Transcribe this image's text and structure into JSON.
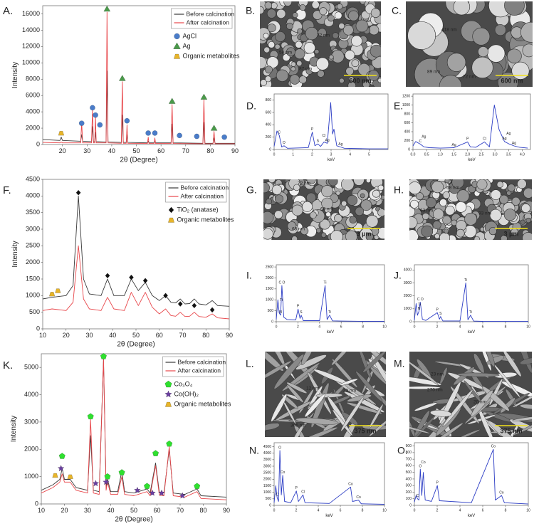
{
  "chart_data": [
    {
      "type": "line",
      "label": "A.",
      "xlabel": "2θ (Degree)",
      "ylabel": "Intensity",
      "legend": "upper right",
      "xlim": [
        12,
        90
      ],
      "xticks": [
        20,
        30,
        40,
        50,
        60,
        70,
        80,
        90
      ],
      "ylim": [
        0,
        17000
      ],
      "yticks": [
        0,
        2000,
        4000,
        6000,
        8000,
        10000,
        12000,
        14000,
        16000
      ],
      "x": [
        12,
        19,
        19.5,
        20,
        27.4,
        27.8,
        28.2,
        31.8,
        32.2,
        32.6,
        33.1,
        33.4,
        33.7,
        37.7,
        38.1,
        38.5,
        43.9,
        44.3,
        44.7,
        45.9,
        46.2,
        46.5,
        54.5,
        54.8,
        55.1,
        57.2,
        57.5,
        57.8,
        64.1,
        64.5,
        64.9,
        77,
        77.4,
        77.8,
        81.1,
        81.5,
        81.9,
        90
      ],
      "series": [
        {
          "name": "Before calcination",
          "color": "#3a3a3a",
          "values": [
            600,
            500,
            900,
            500,
            400,
            1200,
            400,
            350,
            2200,
            350,
            350,
            1500,
            350,
            300,
            9000,
            300,
            250,
            3600,
            250,
            250,
            1200,
            250,
            200,
            400,
            200,
            200,
            400,
            200,
            200,
            2500,
            200,
            150,
            2700,
            150,
            150,
            800,
            150,
            150
          ]
        },
        {
          "name": "After calcination",
          "color": "#e8474b",
          "values": [
            250,
            200,
            300,
            200,
            200,
            2700,
            200,
            200,
            4200,
            200,
            200,
            3400,
            200,
            200,
            16200,
            200,
            150,
            7700,
            150,
            150,
            2400,
            150,
            120,
            900,
            120,
            120,
            800,
            120,
            120,
            4900,
            120,
            100,
            5500,
            100,
            100,
            1600,
            100,
            100
          ]
        },
        {
          "name": "AgCl",
          "color": "#4a7cc9",
          "marker": "circle",
          "x": [
            27.8,
            32.2,
            33.4,
            35.2,
            46.2,
            54.8,
            57.5,
            67.5,
            74.5,
            85.7
          ],
          "values": [
            2600,
            4500,
            3600,
            2400,
            2900,
            1400,
            1400,
            1100,
            1000,
            900
          ]
        },
        {
          "name": "Ag",
          "color": "#4a9a4a",
          "marker": "triangle",
          "x": [
            38.1,
            44.3,
            64.5,
            77.4,
            81.5
          ],
          "values": [
            16600,
            8100,
            5300,
            5800,
            2000
          ]
        },
        {
          "name": "Organic metabolites",
          "color": "#e8b52a",
          "marker": "trapezoid",
          "x": [
            19.5
          ],
          "values": [
            1400
          ]
        }
      ]
    },
    {
      "type": "line",
      "label": "D.",
      "xlabel": "keV",
      "color": "#2b3cc4",
      "xlim": [
        0,
        6
      ],
      "xticks": [
        0,
        1,
        2,
        3,
        4,
        5
      ],
      "ylim": [
        0,
        900
      ],
      "yticks": [
        0,
        200,
        400,
        600,
        800
      ],
      "x": [
        0,
        0.15,
        0.27,
        0.4,
        0.52,
        0.7,
        1.8,
        2.01,
        2.15,
        2.3,
        2.45,
        2.62,
        2.8,
        2.98,
        3.08,
        3.15,
        3.3,
        3.5,
        3.7,
        5,
        6
      ],
      "values": [
        50,
        300,
        230,
        40,
        60,
        20,
        30,
        280,
        60,
        90,
        50,
        120,
        100,
        760,
        250,
        330,
        60,
        40,
        20,
        10,
        10
      ],
      "annotations": [
        {
          "text": "C",
          "x": 0.27
        },
        {
          "text": "O",
          "x": 0.52
        },
        {
          "text": "P",
          "x": 2.01
        },
        {
          "text": "S",
          "x": 2.3
        },
        {
          "text": "Cl",
          "x": 2.62
        },
        {
          "text": "Ag",
          "x": 2.8
        },
        {
          "text": "Ag",
          "x": 3.5
        }
      ]
    },
    {
      "type": "line",
      "label": "E.",
      "xlabel": "keV",
      "color": "#2b3cc4",
      "xlim": [
        0,
        4.3
      ],
      "xticks": [
        {
          "value": 0,
          "label": "0.0"
        },
        0.5,
        {
          "value": 1,
          "label": "1.0"
        },
        1.5,
        {
          "value": 2,
          "label": "2.0"
        },
        2.5,
        {
          "value": 3,
          "label": "3.0"
        },
        3.5,
        {
          "value": 4,
          "label": "4.0"
        }
      ],
      "ylim": [
        0,
        1250
      ],
      "yticks": [
        0,
        200,
        400,
        600,
        800,
        1000,
        1200
      ],
      "x": [
        0,
        0.1,
        0.27,
        0.4,
        0.6,
        1,
        1.5,
        2,
        2.1,
        2.3,
        2.62,
        2.8,
        2.98,
        3.15,
        3.35,
        3.5,
        3.7,
        3.9,
        4.2
      ],
      "values": [
        80,
        180,
        120,
        60,
        40,
        30,
        40,
        170,
        60,
        50,
        170,
        60,
        1000,
        450,
        180,
        130,
        80,
        50,
        30
      ],
      "annotations": [
        {
          "text": "C",
          "x": 0.27
        },
        {
          "text": "Ag",
          "x": 0.4
        },
        {
          "text": "Ag",
          "x": 1.5
        },
        {
          "text": "P",
          "x": 2.0
        },
        {
          "text": "Cl",
          "x": 2.62
        },
        {
          "text": "Ag",
          "x": 3.35
        },
        {
          "text": "Ag",
          "x": 3.5
        },
        {
          "text": "Ag",
          "x": 3.7
        }
      ]
    },
    {
      "type": "line",
      "label": "F.",
      "xlabel": "2θ (Degree)",
      "ylabel": "Intensity",
      "legend": "upper right",
      "xlim": [
        10,
        90
      ],
      "xticks": [
        10,
        20,
        30,
        40,
        50,
        60,
        70,
        80,
        90
      ],
      "ylim": [
        0,
        4500
      ],
      "yticks": [
        0,
        500,
        1000,
        1500,
        2000,
        2500,
        3000,
        3500,
        4000,
        4500
      ],
      "x": [
        10,
        14,
        20,
        23,
        25.3,
        27.5,
        30,
        35,
        37.8,
        40.5,
        45,
        48,
        51,
        54,
        57,
        60,
        62.7,
        65,
        67,
        69,
        71,
        73,
        75,
        77,
        80,
        82.7,
        85,
        90
      ],
      "series": [
        {
          "name": "Before calcination",
          "color": "#3a3a3a",
          "values": [
            900,
            950,
            1000,
            1300,
            4000,
            1500,
            1050,
            1000,
            1500,
            1000,
            1000,
            1500,
            1150,
            1400,
            1000,
            850,
            1000,
            800,
            780,
            900,
            750,
            760,
            900,
            750,
            720,
            850,
            700,
            680
          ]
        },
        {
          "name": "After calcination",
          "color": "#e8474b",
          "values": [
            550,
            600,
            550,
            800,
            2500,
            900,
            600,
            550,
            950,
            600,
            550,
            1100,
            700,
            1100,
            650,
            450,
            600,
            400,
            380,
            500,
            370,
            380,
            500,
            370,
            350,
            450,
            330,
            300
          ]
        },
        {
          "name": "TiO₂ (anatase)",
          "color": "#111111",
          "marker": "diamond",
          "x": [
            25.3,
            37.8,
            48,
            54,
            62.7,
            69,
            75,
            82.7
          ],
          "values": [
            4100,
            1600,
            1550,
            1450,
            1000,
            750,
            700,
            570
          ]
        },
        {
          "name": "Organic metabolites",
          "color": "#e8b52a",
          "marker": "trapezoid",
          "x": [
            14,
            16.5
          ],
          "values": [
            1050,
            1150
          ]
        }
      ]
    },
    {
      "type": "line",
      "label": "I.",
      "xlabel": "keV",
      "color": "#2b3cc4",
      "xlim": [
        0,
        10
      ],
      "xticks": [
        0,
        2,
        4,
        6,
        8,
        10
      ],
      "ylim": [
        0,
        2600
      ],
      "yticks": [
        0,
        500,
        1000,
        1500,
        2000,
        2500
      ],
      "x": [
        0,
        0.15,
        0.27,
        0.4,
        0.52,
        0.7,
        1,
        1.8,
        2.01,
        2.2,
        2.3,
        2.5,
        4,
        4.51,
        4.7,
        4.93,
        5.2,
        6,
        8,
        10
      ],
      "values": [
        100,
        1000,
        400,
        300,
        1650,
        200,
        100,
        80,
        580,
        150,
        300,
        50,
        50,
        1650,
        100,
        300,
        40,
        30,
        20,
        20
      ],
      "annotations": [
        {
          "text": "C O",
          "x": 0.52
        },
        {
          "text": "Ti",
          "x": 0.45
        },
        {
          "text": "N",
          "x": 0.4
        },
        {
          "text": "P",
          "x": 2.01
        },
        {
          "text": "S",
          "x": 2.3
        },
        {
          "text": "Ti",
          "x": 4.51
        },
        {
          "text": "Ti",
          "x": 4.93
        }
      ]
    },
    {
      "type": "line",
      "label": "J.",
      "xlabel": "keV",
      "color": "#2b3cc4",
      "xlim": [
        0,
        10
      ],
      "xticks": [
        0,
        2,
        4,
        6,
        8,
        10
      ],
      "ylim": [
        0,
        4400
      ],
      "yticks": [
        0,
        1000,
        2000,
        3000,
        4000
      ],
      "x": [
        0,
        0.15,
        0.27,
        0.4,
        0.52,
        0.7,
        1,
        2.01,
        2.2,
        2.3,
        2.5,
        4,
        4.51,
        4.7,
        4.93,
        5.2,
        6,
        10
      ],
      "values": [
        100,
        1400,
        500,
        800,
        1500,
        200,
        100,
        700,
        200,
        400,
        60,
        60,
        3000,
        150,
        500,
        50,
        30,
        20
      ],
      "annotations": [
        {
          "text": "C O",
          "x": 0.52
        },
        {
          "text": "Ti",
          "x": 0.45
        },
        {
          "text": "N",
          "x": 0.4
        },
        {
          "text": "P",
          "x": 2.01
        },
        {
          "text": "S",
          "x": 2.3
        },
        {
          "text": "Ti",
          "x": 4.51
        },
        {
          "text": "Ti",
          "x": 4.93
        }
      ]
    },
    {
      "type": "line",
      "label": "K.",
      "xlabel": "2θ (Degree)",
      "ylabel": "Intensity",
      "legend": "upper right",
      "xlim": [
        10,
        90
      ],
      "xticks": [
        10,
        20,
        30,
        40,
        50,
        60,
        70,
        80,
        90
      ],
      "ylim": [
        0,
        5500
      ],
      "yticks": [
        0,
        1000,
        2000,
        3000,
        4000,
        5000
      ],
      "x": [
        10,
        15,
        18,
        19,
        20,
        22.5,
        25,
        30,
        31.3,
        32.5,
        35,
        36.9,
        38,
        38.6,
        40,
        43,
        44.8,
        46,
        50,
        55.7,
        57,
        59.4,
        61,
        63,
        65.3,
        67,
        72,
        77.3,
        79,
        90
      ],
      "series": [
        {
          "name": "Before calcination",
          "color": "#3a3a3a",
          "values": [
            500,
            700,
            900,
            1300,
            900,
            900,
            600,
            500,
            2500,
            500,
            450,
            5300,
            600,
            900,
            450,
            450,
            1200,
            450,
            400,
            550,
            400,
            1500,
            420,
            400,
            2000,
            400,
            350,
            550,
            300,
            250
          ]
        },
        {
          "name": "After calcination",
          "color": "#e8474b",
          "values": [
            400,
            600,
            800,
            1100,
            800,
            800,
            500,
            400,
            3100,
            400,
            350,
            5300,
            500,
            800,
            350,
            350,
            1000,
            350,
            300,
            450,
            300,
            1400,
            320,
            300,
            2100,
            300,
            250,
            450,
            200,
            150
          ]
        },
        {
          "name": "Co₃O₄",
          "color": "#2fe02f",
          "marker": "pentagon",
          "x": [
            19,
            31.3,
            36.9,
            38.6,
            44.8,
            55.7,
            59.4,
            65.3,
            77.3
          ],
          "values": [
            1750,
            3200,
            5400,
            1000,
            1150,
            650,
            1850,
            2200,
            650
          ]
        },
        {
          "name": "Co(OH)₂",
          "color": "#6a3ea0",
          "marker": "star",
          "x": [
            18.5,
            33.5,
            38,
            51.5,
            58,
            62,
            71
          ],
          "values": [
            1300,
            750,
            800,
            500,
            400,
            400,
            300
          ]
        },
        {
          "name": "Organic metabolites",
          "color": "#e8b52a",
          "marker": "trapezoid",
          "x": [
            16,
            22.5
          ],
          "values": [
            1050,
            1000
          ]
        }
      ]
    },
    {
      "type": "line",
      "label": "N.",
      "xlabel": "keV",
      "color": "#2b3cc4",
      "xlim": [
        0,
        10
      ],
      "xticks": [
        0,
        2,
        4,
        6,
        8,
        10
      ],
      "ylim": [
        0,
        4800
      ],
      "yticks": [
        0,
        500,
        1000,
        1500,
        2000,
        2500,
        3000,
        3500,
        4000,
        4500
      ],
      "x": [
        0,
        0.15,
        0.27,
        0.4,
        0.52,
        0.65,
        0.78,
        0.95,
        1.5,
        2.01,
        2.2,
        2.62,
        2.8,
        5,
        6.93,
        7.1,
        7.65,
        7.9,
        10
      ],
      "values": [
        200,
        1500,
        600,
        300,
        4200,
        800,
        2300,
        300,
        200,
        1100,
        300,
        800,
        200,
        150,
        1400,
        300,
        400,
        120,
        80
      ],
      "annotations": [
        {
          "text": "C",
          "x": 0.27
        },
        {
          "text": "O",
          "x": 0.52
        },
        {
          "text": "Co",
          "x": 0.78
        },
        {
          "text": "P",
          "x": 2.01
        },
        {
          "text": "Cl",
          "x": 2.62
        },
        {
          "text": "Co",
          "x": 6.93
        },
        {
          "text": "Co",
          "x": 7.65
        }
      ]
    },
    {
      "type": "line",
      "label": "O.",
      "xlabel": "keV",
      "color": "#2b3cc4",
      "xlim": [
        0,
        10
      ],
      "xticks": [
        0,
        2,
        4,
        6,
        8,
        10
      ],
      "ylim": [
        0,
        950
      ],
      "yticks": [
        0,
        100,
        200,
        300,
        400,
        500,
        600,
        700,
        800,
        900
      ],
      "x": [
        0,
        0.15,
        0.27,
        0.4,
        0.52,
        0.65,
        0.78,
        0.95,
        1.5,
        2.01,
        2.2,
        5,
        6.93,
        7.1,
        7.65,
        7.9,
        10
      ],
      "values": [
        50,
        150,
        100,
        80,
        550,
        150,
        500,
        80,
        60,
        300,
        70,
        40,
        850,
        80,
        150,
        40,
        20
      ],
      "annotations": [
        {
          "text": "C",
          "x": 0.27
        },
        {
          "text": "O",
          "x": 0.52
        },
        {
          "text": "Co",
          "x": 0.78
        },
        {
          "text": "P",
          "x": 2.01
        },
        {
          "text": "Co",
          "x": 6.93
        },
        {
          "text": "Co",
          "x": 7.65
        }
      ]
    }
  ],
  "images": [
    {
      "label": "B.",
      "labels": [
        "72 nm",
        "58 nm",
        "87 nm"
      ],
      "scale_bar": "600 nm"
    },
    {
      "label": "C.",
      "labels": [
        "418 nm",
        "89 nm",
        "72 nm"
      ],
      "scale_bar": "600 nm"
    },
    {
      "label": "G.",
      "labels": [
        "72 nm",
        "60 nm",
        "68 nm"
      ],
      "scale_bar": "3 μm"
    },
    {
      "label": "H.",
      "labels": [
        "68 nm",
        "63 nm",
        "93 nm"
      ],
      "scale_bar": "3 μm"
    },
    {
      "label": "L.",
      "labels": [
        "12 nm",
        "23 nm",
        "306 nm"
      ],
      "scale_bar": "375 nm"
    },
    {
      "label": "M.",
      "labels": [
        "23 nm",
        "270 nm",
        "20 nm"
      ],
      "scale_bar": "375 nm"
    }
  ]
}
